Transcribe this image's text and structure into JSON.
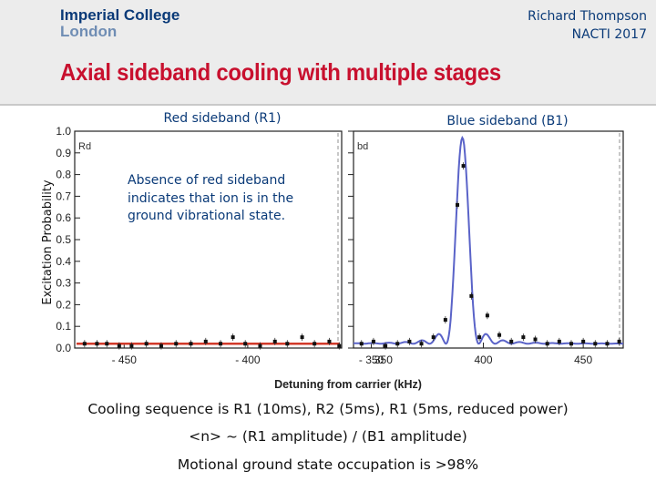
{
  "logo": {
    "line1": "Imperial College",
    "line2": "London"
  },
  "author": {
    "name": "Richard Thompson",
    "event": "NACTI 2017"
  },
  "slide_title": "Axial sideband cooling with multiple stages",
  "annotation": "Absence of red sideband indicates that ion is in the ground vibrational state.",
  "captions": {
    "line1": "Cooling sequence is R1 (10ms), R2 (5ms), R1 (5ms, reduced power)",
    "line2": "<n> ~ (R1 amplitude) / (B1 amplitude)",
    "line3": "Motional ground state occupation is >98%"
  },
  "colors": {
    "title_red": "#c8102e",
    "navy": "#0a3a78",
    "red_fit": "#d23a2a",
    "blue_fit": "#5a63c8"
  },
  "chart_data": [
    {
      "type": "scatter",
      "panel_title": "Red sideband (R1)",
      "panel_tag": "Rd",
      "ylabel": "Excitation Probability",
      "xlabel": "Detuning from carrier (kHz)",
      "xticks": [
        -450,
        -400,
        -350
      ],
      "xlim": [
        -470,
        -362
      ],
      "yticks": [
        0.0,
        0.1,
        0.2,
        0.3,
        0.4,
        0.5,
        0.6,
        0.7,
        0.8,
        0.9,
        1.0
      ],
      "ylim": [
        0,
        1.0
      ],
      "points": [
        {
          "x": -466,
          "y": 0.02
        },
        {
          "x": -461,
          "y": 0.02
        },
        {
          "x": -457,
          "y": 0.02
        },
        {
          "x": -452,
          "y": 0.01
        },
        {
          "x": -447,
          "y": 0.01
        },
        {
          "x": -441,
          "y": 0.02
        },
        {
          "x": -435,
          "y": 0.01
        },
        {
          "x": -429,
          "y": 0.02
        },
        {
          "x": -423,
          "y": 0.02
        },
        {
          "x": -417,
          "y": 0.03
        },
        {
          "x": -411,
          "y": 0.02
        },
        {
          "x": -406,
          "y": 0.05
        },
        {
          "x": -401,
          "y": 0.02
        },
        {
          "x": -395,
          "y": 0.01
        },
        {
          "x": -389,
          "y": 0.03
        },
        {
          "x": -384,
          "y": 0.02
        },
        {
          "x": -378,
          "y": 0.05
        },
        {
          "x": -373,
          "y": 0.02
        },
        {
          "x": -367,
          "y": 0.03
        },
        {
          "x": -363,
          "y": 0.01
        }
      ],
      "fit_level": 0.02
    },
    {
      "type": "line",
      "panel_title": "Blue sideband (B1)",
      "panel_tag": "bd",
      "xticks": [
        350,
        400,
        450
      ],
      "xlim": [
        335,
        470
      ],
      "ylim": [
        0,
        1.0
      ],
      "points": [
        {
          "x": 339,
          "y": 0.02
        },
        {
          "x": 345,
          "y": 0.03
        },
        {
          "x": 351,
          "y": 0.01
        },
        {
          "x": 357,
          "y": 0.02
        },
        {
          "x": 363,
          "y": 0.03
        },
        {
          "x": 369,
          "y": 0.02
        },
        {
          "x": 375,
          "y": 0.05
        },
        {
          "x": 381,
          "y": 0.13
        },
        {
          "x": 387,
          "y": 0.66
        },
        {
          "x": 390,
          "y": 0.84
        },
        {
          "x": 394,
          "y": 0.24
        },
        {
          "x": 398,
          "y": 0.05
        },
        {
          "x": 402,
          "y": 0.15
        },
        {
          "x": 408,
          "y": 0.06
        },
        {
          "x": 414,
          "y": 0.03
        },
        {
          "x": 420,
          "y": 0.05
        },
        {
          "x": 426,
          "y": 0.04
        },
        {
          "x": 432,
          "y": 0.02
        },
        {
          "x": 438,
          "y": 0.03
        },
        {
          "x": 444,
          "y": 0.02
        },
        {
          "x": 450,
          "y": 0.03
        },
        {
          "x": 456,
          "y": 0.02
        },
        {
          "x": 462,
          "y": 0.02
        },
        {
          "x": 468,
          "y": 0.03
        }
      ],
      "fit": {
        "center": 389.5,
        "amplitude": 0.95,
        "width": 8.2
      }
    }
  ]
}
